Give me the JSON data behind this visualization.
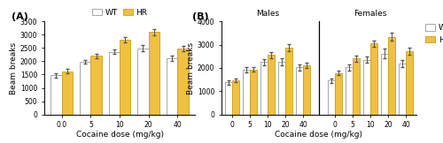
{
  "doses_A": [
    0.0,
    5,
    10,
    20,
    40
  ],
  "WT_A": [
    1470,
    1980,
    2360,
    2490,
    2110
  ],
  "HR_A": [
    1630,
    2200,
    2820,
    3100,
    2480
  ],
  "WT_A_err": [
    80,
    80,
    90,
    120,
    90
  ],
  "HR_A_err": [
    90,
    90,
    100,
    120,
    110
  ],
  "doses_B": [
    0,
    5,
    10,
    20,
    40
  ],
  "WT_B_male": [
    1380,
    1920,
    2250,
    2250,
    2020
  ],
  "HR_B_male": [
    1480,
    1940,
    2560,
    2870,
    2120
  ],
  "WT_B_male_err": [
    100,
    120,
    120,
    150,
    120
  ],
  "HR_B_male_err": [
    80,
    100,
    130,
    160,
    110
  ],
  "WT_B_female": [
    1460,
    2020,
    2350,
    2620,
    2190
  ],
  "HR_B_female": [
    1780,
    2400,
    3050,
    3340,
    2730
  ],
  "WT_B_female_err": [
    100,
    120,
    130,
    200,
    150
  ],
  "HR_B_female_err": [
    90,
    120,
    140,
    180,
    160
  ],
  "wt_color": "#ffffff",
  "hr_color": "#f0c040",
  "wt_edge": "#999999",
  "hr_edge": "#c8a020",
  "bar_width": 0.38,
  "ylabel": "Beam breaks",
  "xlabel": "Cocaine dose (mg/kg)",
  "ylim_A": [
    0,
    3500
  ],
  "ylim_B": [
    0,
    4000
  ],
  "yticks_A": [
    0,
    500,
    1000,
    1500,
    2000,
    2500,
    3000,
    3500
  ],
  "yticks_B": [
    0,
    1000,
    2000,
    3000,
    4000
  ],
  "label_A": "(A)",
  "label_B": "(B)",
  "tick_labels_A": [
    "0.0",
    "5",
    "10",
    "20",
    "40"
  ],
  "tick_labels_B": [
    "0",
    "5",
    "10",
    "20",
    "40"
  ]
}
